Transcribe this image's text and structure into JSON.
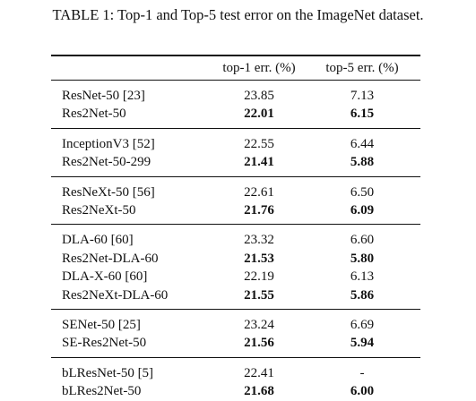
{
  "caption": "TABLE 1: Top-1 and Top-5 test error on the ImageNet dataset.",
  "table": {
    "header": [
      "",
      "top-1 err. (%)",
      "top-5 err. (%)"
    ],
    "groups": [
      [
        {
          "name": "ResNet-50 [23]",
          "top1": "23.85",
          "top5": "7.13",
          "bold": false
        },
        {
          "name": "Res2Net-50",
          "top1": "22.01",
          "top5": "6.15",
          "bold": true
        }
      ],
      [
        {
          "name": "InceptionV3 [52]",
          "top1": "22.55",
          "top5": "6.44",
          "bold": false
        },
        {
          "name": "Res2Net-50-299",
          "top1": "21.41",
          "top5": "5.88",
          "bold": true
        }
      ],
      [
        {
          "name": "ResNeXt-50 [56]",
          "top1": "22.61",
          "top5": "6.50",
          "bold": false
        },
        {
          "name": "Res2NeXt-50",
          "top1": "21.76",
          "top5": "6.09",
          "bold": true
        }
      ],
      [
        {
          "name": "DLA-60 [60]",
          "top1": "23.32",
          "top5": "6.60",
          "bold": false
        },
        {
          "name": "Res2Net-DLA-60",
          "top1": "21.53",
          "top5": "5.80",
          "bold": true
        },
        {
          "name": "DLA-X-60 [60]",
          "top1": "22.19",
          "top5": "6.13",
          "bold": false
        },
        {
          "name": "Res2NeXt-DLA-60",
          "top1": "21.55",
          "top5": "5.86",
          "bold": true
        }
      ],
      [
        {
          "name": "SENet-50 [25]",
          "top1": "23.24",
          "top5": "6.69",
          "bold": false
        },
        {
          "name": "SE-Res2Net-50",
          "top1": "21.56",
          "top5": "5.94",
          "bold": true
        }
      ],
      [
        {
          "name": "bLResNet-50 [5]",
          "top1": "22.41",
          "top5": "-",
          "bold": false
        },
        {
          "name": "bLRes2Net-50",
          "top1": "21.68",
          "top5": "6.00",
          "bold": true
        }
      ]
    ]
  }
}
